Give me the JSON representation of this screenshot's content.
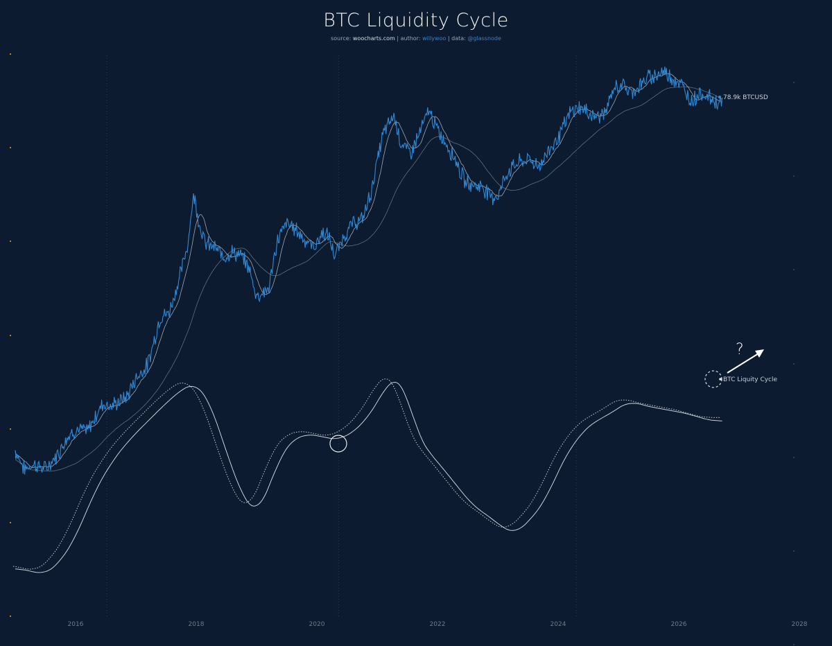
{
  "title": "BTC Liquidity Cycle",
  "subtitle": {
    "source_prefix": "source: ",
    "source": "woocharts.com",
    "sep1": " | author: ",
    "author": "willywoo",
    "sep2": " | data: ",
    "data_src": "@glassnode"
  },
  "colors": {
    "background": "#0c1b2f",
    "price": "#2f8ad8",
    "ma": "#9aa6b6",
    "cycle": "#c9d0da",
    "tick_marker": "#c77a1a",
    "arrow": "#ffffff"
  },
  "chart_data": {
    "type": "line",
    "x_axis": {
      "ticks": [
        "2016",
        "2018",
        "2020",
        "2022",
        "2024",
        "2026",
        "2028"
      ],
      "range": [
        2015.0,
        2028.0
      ]
    },
    "y_axis": {
      "scale": "log",
      "labels_visible": false
    },
    "grid": false,
    "vertical_markers": [
      2016.52,
      2020.36,
      2024.3
    ],
    "series": [
      {
        "name": "BTCUSD",
        "end_label": "78.9k BTCUSD",
        "x": [
          2015.0,
          2015.15,
          2015.3,
          2015.5,
          2015.7,
          2015.85,
          2016.0,
          2016.2,
          2016.45,
          2016.6,
          2016.85,
          2017.0,
          2017.2,
          2017.4,
          2017.55,
          2017.7,
          2017.85,
          2017.96,
          2018.05,
          2018.15,
          2018.3,
          2018.45,
          2018.6,
          2018.75,
          2018.87,
          2019.0,
          2019.2,
          2019.35,
          2019.5,
          2019.65,
          2019.8,
          2019.95,
          2020.1,
          2020.2,
          2020.3,
          2020.45,
          2020.6,
          2020.75,
          2020.9,
          2021.0,
          2021.1,
          2021.28,
          2021.4,
          2021.55,
          2021.7,
          2021.86,
          2022.0,
          2022.15,
          2022.3,
          2022.45,
          2022.6,
          2022.75,
          2022.9,
          2023.0,
          2023.15,
          2023.3,
          2023.5,
          2023.7,
          2023.85,
          2024.0,
          2024.2,
          2024.35,
          2024.5,
          2024.65,
          2024.8,
          2024.92,
          2025.05,
          2025.2,
          2025.35,
          2025.5,
          2025.65,
          2025.77,
          2025.9,
          2026.05,
          2026.2,
          2026.35,
          2026.5,
          2026.65,
          2026.72
        ],
        "y": [
          310,
          230,
          250,
          230,
          290,
          380,
          430,
          420,
          650,
          620,
          720,
          960,
          1200,
          2500,
          2700,
          4300,
          7500,
          17500,
          11000,
          8000,
          7500,
          6500,
          7000,
          6500,
          5500,
          3500,
          3900,
          8500,
          11000,
          10000,
          8500,
          7500,
          9500,
          8800,
          6500,
          9000,
          11000,
          11500,
          18000,
          29000,
          45000,
          60000,
          38000,
          33000,
          45000,
          65000,
          47000,
          38000,
          30000,
          21000,
          20000,
          19500,
          16500,
          17000,
          24000,
          28000,
          30000,
          27000,
          35000,
          42000,
          62000,
          68000,
          62000,
          58000,
          64000,
          90000,
          98000,
          85000,
          95000,
          108000,
          115000,
          118000,
          108000,
          95000,
          75000,
          85000,
          80000,
          72000,
          78900
        ]
      },
      {
        "name": "BTC Liquity Cycle",
        "end_label": "BTC Liquity Cycle",
        "x": [
          2015.0,
          2015.3,
          2015.5,
          2015.7,
          2016.0,
          2016.3,
          2016.6,
          2016.9,
          2017.2,
          2017.5,
          2017.8,
          2018.0,
          2018.2,
          2018.4,
          2018.6,
          2018.8,
          2019.0,
          2019.2,
          2019.4,
          2019.6,
          2019.8,
          2020.0,
          2020.2,
          2020.4,
          2020.6,
          2020.8,
          2021.0,
          2021.2,
          2021.35,
          2021.5,
          2021.65,
          2021.8,
          2022.0,
          2022.3,
          2022.6,
          2022.9,
          2023.1,
          2023.3,
          2023.5,
          2023.8,
          2024.0,
          2024.2,
          2024.4,
          2024.6,
          2024.8,
          2025.0,
          2025.2,
          2025.4,
          2025.6,
          2025.8,
          2026.0,
          2026.2,
          2026.4,
          2026.6,
          2026.72
        ],
        "y": [
          5,
          3,
          2,
          6,
          18,
          38,
          52,
          62,
          70,
          78,
          85,
          87,
          80,
          65,
          48,
          35,
          28,
          40,
          55,
          62,
          64,
          64,
          62,
          62,
          65,
          70,
          78,
          88,
          90,
          82,
          65,
          58,
          52,
          42,
          32,
          27,
          22,
          20,
          25,
          35,
          48,
          58,
          65,
          70,
          72,
          76,
          79,
          77,
          76,
          75,
          74,
          73,
          71,
          70,
          70
        ]
      }
    ],
    "annotation": {
      "text": "?"
    }
  },
  "ticks": {
    "t2016": "2016",
    "t2018": "2018",
    "t2020": "2020",
    "t2022": "2022",
    "t2024": "2024",
    "t2026": "2026",
    "t2028": "2028"
  },
  "labels": {
    "price_end": "78.9k BTCUSD",
    "cycle_end": "BTC Liquity Cycle",
    "question": "?"
  }
}
